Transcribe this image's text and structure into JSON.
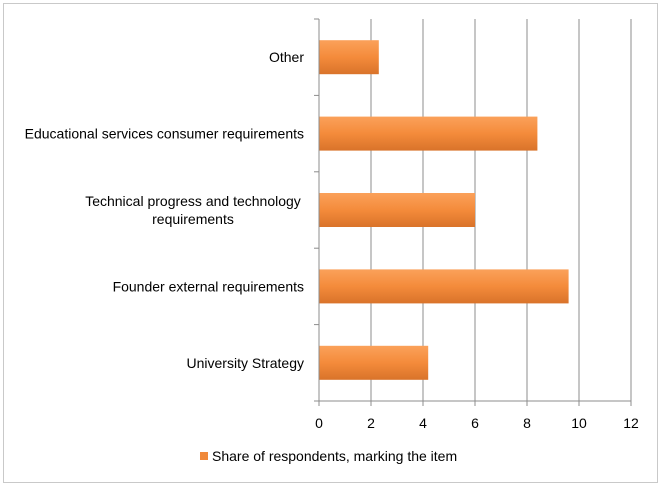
{
  "chart_data": {
    "type": "bar",
    "orientation": "horizontal",
    "categories": [
      "Other",
      "Educational services consumer requirements",
      "Technical progress and technology requirements",
      "Founder external requirements",
      "University Strategy"
    ],
    "category_display_lines": [
      [
        "Other"
      ],
      [
        "Educational services consumer requirements"
      ],
      [
        "Technical progress and technology",
        "requirements"
      ],
      [
        "Founder external requirements"
      ],
      [
        "University Strategy"
      ]
    ],
    "series": [
      {
        "name": "Share of respondents, marking the item",
        "values": [
          2.3,
          8.4,
          6.0,
          9.6,
          4.2
        ],
        "color": "#f0893a"
      }
    ],
    "xlim": [
      0,
      12
    ],
    "x_ticks": [
      0,
      2,
      4,
      6,
      8,
      10,
      12
    ],
    "grid": "vertical",
    "legend": "bottom-center"
  }
}
